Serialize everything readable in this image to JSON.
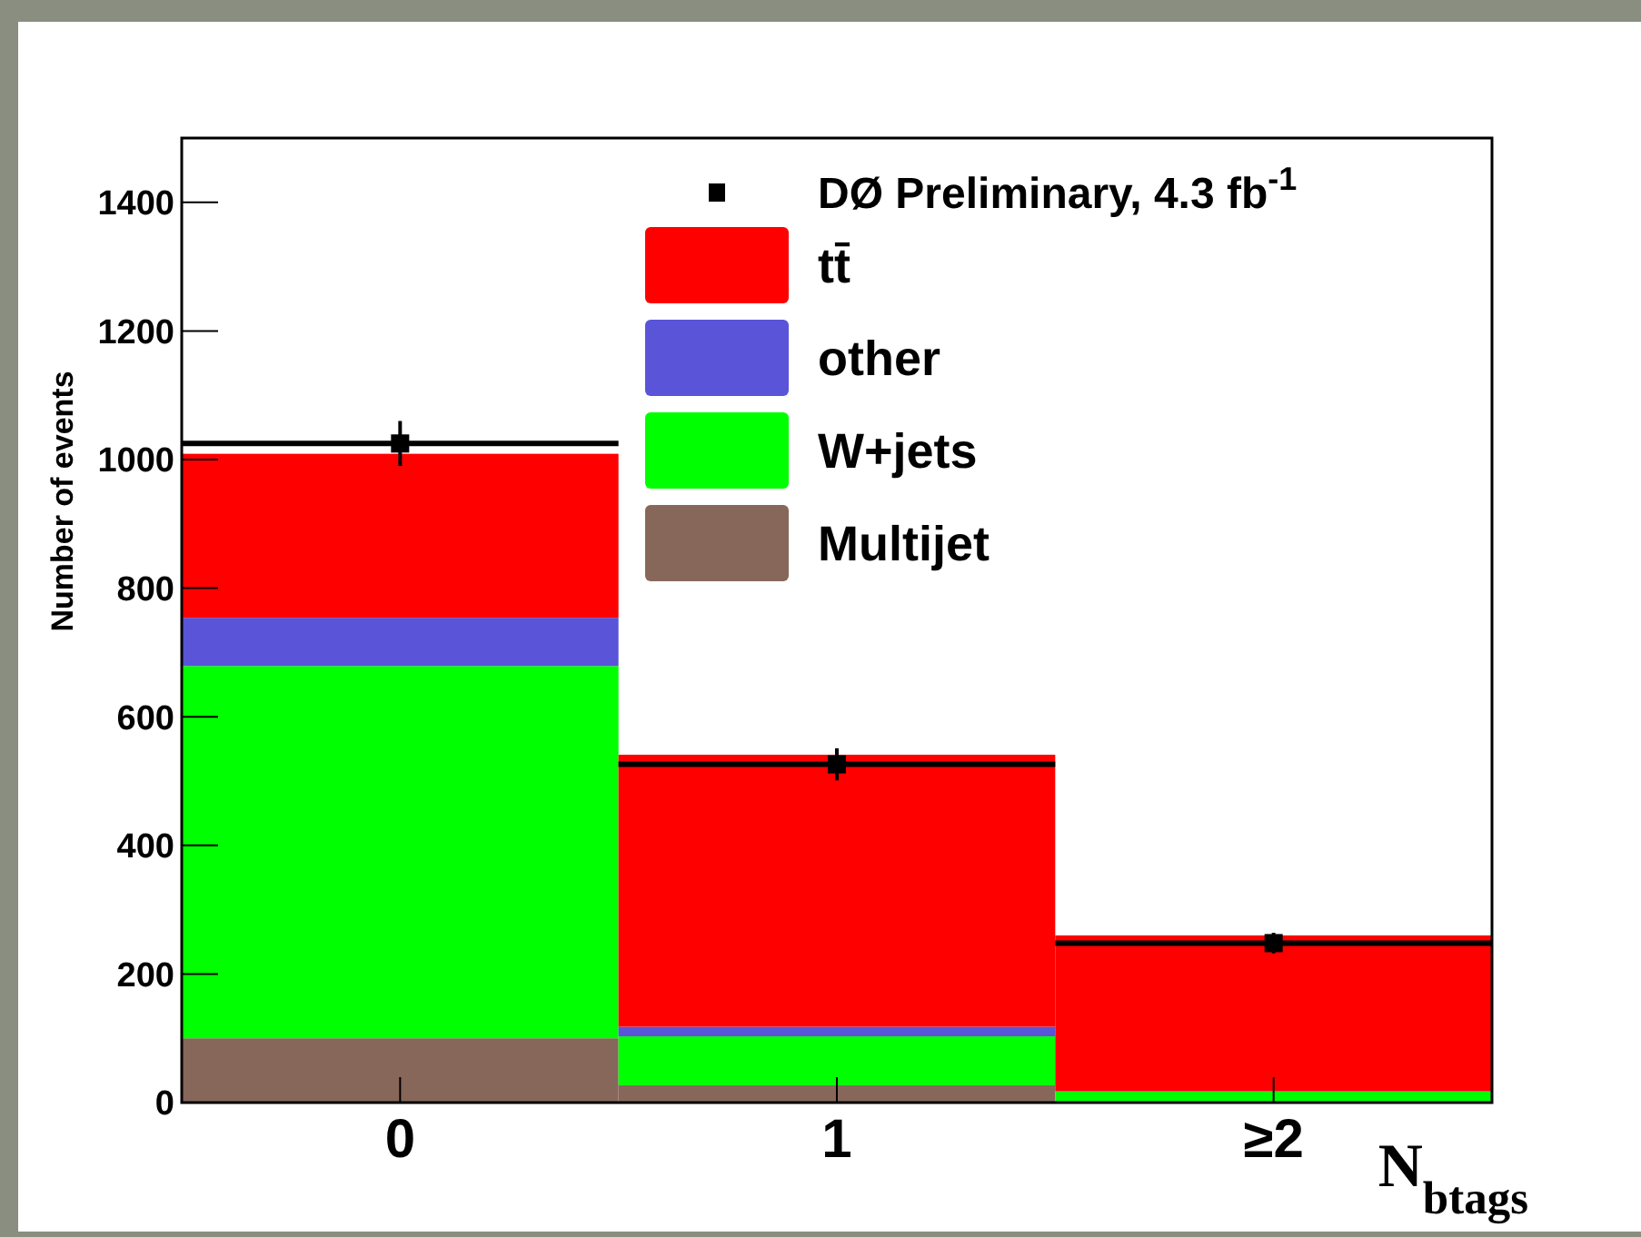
{
  "chart_data": {
    "type": "bar",
    "stacked": true,
    "ylabel": "Number of events",
    "xlabel": "N$_{btags}$",
    "x": [
      0,
      1,
      2
    ],
    "xlim": [
      -0.5,
      2.5
    ],
    "xticks": [
      0,
      1,
      {
        "value": 2,
        "label": "≥2"
      }
    ],
    "ylim": [
      0,
      1500
    ],
    "yticks": [
      0,
      200,
      400,
      600,
      800,
      1000,
      1200,
      1400
    ],
    "legend": "top right",
    "grid": false,
    "series": [
      {
        "name": "Multijet",
        "color": "#87675a",
        "values": [
          100,
          27,
          null
        ]
      },
      {
        "name": "W+jets",
        "color": "#00ff00",
        "values": [
          579,
          76,
          17
        ]
      },
      {
        "name": "other",
        "color": "#5954d8",
        "values": [
          75,
          15,
          1
        ]
      },
      {
        "name": "tt̄",
        "color": "#ff0000",
        "values": [
          255,
          423,
          242
        ]
      },
      {
        "name": "DØ Preliminary, 4.3 fb$^{-1}$",
        "type": "scatter",
        "marker": "square",
        "color": "#000000",
        "x": [
          0,
          1,
          2
        ],
        "values": [
          1025,
          526,
          248
        ],
        "errors": [
          35,
          25,
          16
        ],
        "xerrors": [
          0.5,
          0.5,
          0.5
        ]
      }
    ]
  }
}
